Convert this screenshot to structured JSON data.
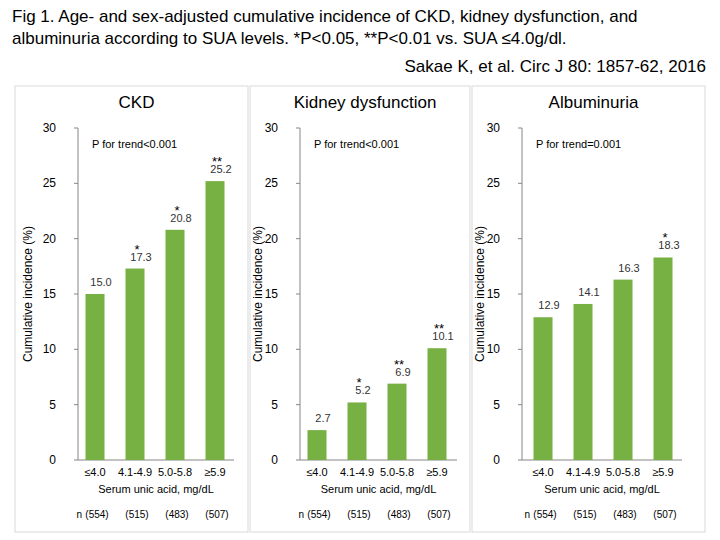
{
  "figure_title": "Fig 1. Age- and sex-adjusted cumulative incidence of CKD, kidney dysfunction, and albuminuria according to SUA levels. *P<0.05, **P<0.01 vs. SUA ≤4.0g/dl.",
  "citation": "Sakae K, et al. Circ J 80: 1857-62, 2016",
  "chart_data": [
    {
      "type": "bar",
      "title": "CKD",
      "annotation": "P for trend<0.001",
      "y_label": "Cumulative incidence (%)",
      "x_label": "Serum unic acid, mg/dL",
      "categories": [
        "≤4.0",
        "4.1-4.9",
        "5.0-5.8",
        "≥5.9"
      ],
      "values": [
        15.0,
        17.3,
        20.8,
        25.2
      ],
      "value_labels": [
        "15.0",
        "17.3",
        "20.8",
        "25.2"
      ],
      "significance": [
        null,
        "*",
        "*",
        "**"
      ],
      "n_label": "n",
      "sample_size_labels": [
        "(554)",
        "(515)",
        "(483)",
        "(507)"
      ],
      "color": "#77b043",
      "ylim": [
        0,
        30
      ],
      "yticks": [
        0,
        5,
        10,
        15,
        20,
        25,
        30
      ],
      "grid": false,
      "data_labels": true
    },
    {
      "type": "bar",
      "title": "Kidney dysfunction",
      "annotation": "P for trend<0.001",
      "y_label": "Cumulative incidence (%)",
      "x_label": "Serum unic acid, mg/dL",
      "categories": [
        "≤4.0",
        "4.1-4.9",
        "5.0-5.8",
        "≥5.9"
      ],
      "values": [
        2.7,
        5.2,
        6.9,
        10.1
      ],
      "value_labels": [
        "2.7",
        "5.2",
        "6.9",
        "10.1"
      ],
      "significance": [
        null,
        "*",
        "**",
        "**"
      ],
      "n_label": "n",
      "sample_size_labels": [
        "(554)",
        "(515)",
        "(483)",
        "(507)"
      ],
      "color": "#77b043",
      "ylim": [
        0,
        30
      ],
      "yticks": [
        0,
        5,
        10,
        15,
        20,
        25,
        30
      ],
      "grid": false,
      "data_labels": true
    },
    {
      "type": "bar",
      "title": "Albuminuria",
      "annotation": "P for trend=0.001",
      "y_label": "Cumulative incidence (%)",
      "x_label": "Serum unic acid, mg/dL",
      "categories": [
        "≤4.0",
        "4.1-4.9",
        "5.0-5.8",
        "≥5.9"
      ],
      "values": [
        12.9,
        14.1,
        16.3,
        18.3
      ],
      "value_labels": [
        "12.9",
        "14.1",
        "16.3",
        "18.3"
      ],
      "significance": [
        null,
        null,
        null,
        "*"
      ],
      "n_label": "n",
      "sample_size_labels": [
        "(554)",
        "(515)",
        "(483)",
        "(507)"
      ],
      "color": "#77b043",
      "ylim": [
        0,
        30
      ],
      "yticks": [
        0,
        5,
        10,
        15,
        20,
        25,
        30
      ],
      "grid": false,
      "data_labels": true
    }
  ]
}
